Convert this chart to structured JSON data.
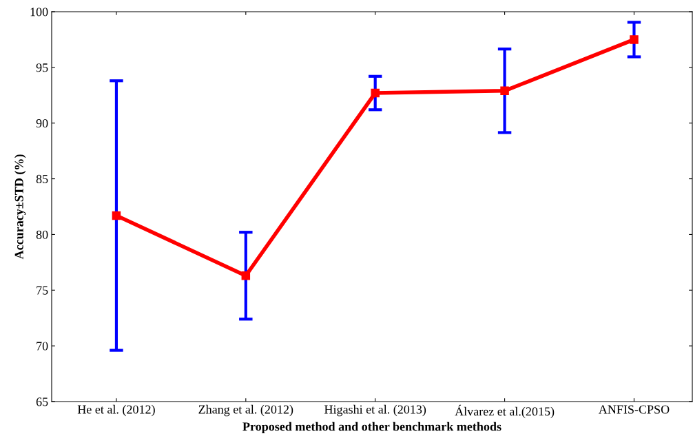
{
  "chart_data": {
    "type": "line",
    "xlabel": "Proposed method and other benchmark methods",
    "ylabel": "Accuracy±STD (%)",
    "categories": [
      "He et al. (2012)",
      "Zhang et al. (2012)",
      "Higashi et al. (2013)",
      "Álvarez et al.(2015)",
      "ANFIS-CPSO"
    ],
    "series": [
      {
        "color": "#ff0000",
        "values": [
          81.7,
          76.3,
          92.7,
          92.9,
          97.5
        ],
        "errors": [
          12.1,
          3.9,
          1.5,
          3.75,
          1.55
        ]
      }
    ],
    "ylim": [
      65,
      100
    ],
    "yticks": [
      65,
      70,
      75,
      80,
      85,
      90,
      95,
      100
    ],
    "marker": "square",
    "line_style": "solid",
    "grid": false,
    "legend": false
  }
}
